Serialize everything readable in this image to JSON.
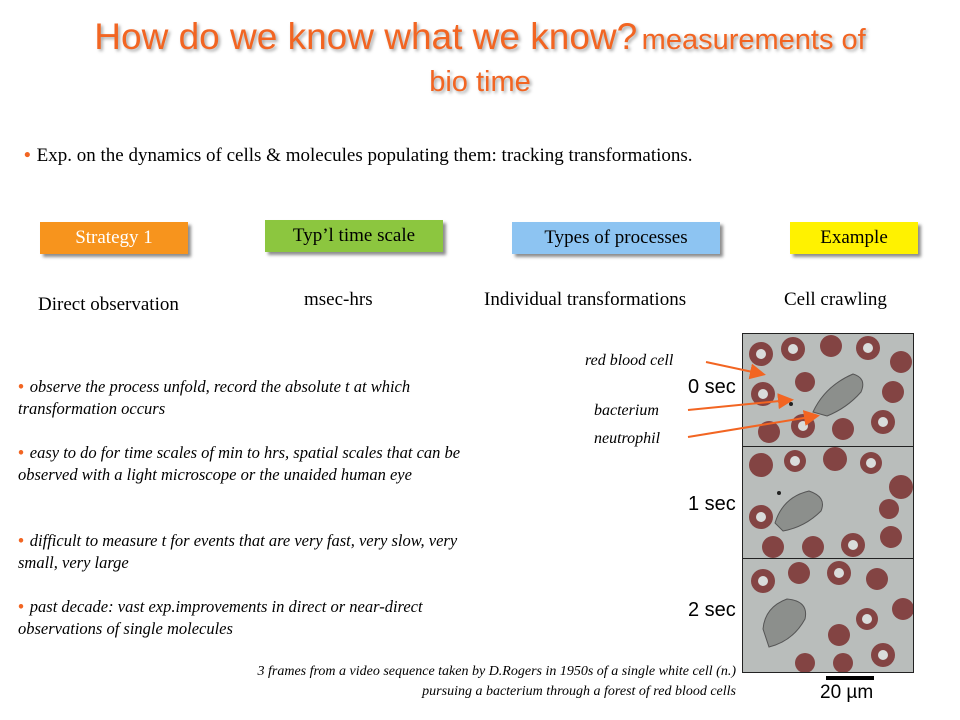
{
  "title": {
    "main": "How do we know what we know?",
    "secondary": "measurements of",
    "line2": "bio time"
  },
  "intro": "Exp. on the dynamics of cells & molecules populating them: tracking transformations.",
  "headers": [
    "Strategy 1",
    "Typ’l time scale",
    "Types of processes",
    "Example"
  ],
  "row1": [
    "Direct observation",
    "msec-hrs",
    "Individual transformations",
    "Cell crawling"
  ],
  "bullets": [
    "observe the process unfold, record the absolute t at which transformation occurs",
    "easy to do for time scales of min to hrs, spatial scales that can be observed with a light microscope or the unaided human eye",
    "difficult to measure t for events that are very fast, very slow, very small, very large",
    "past decade: vast exp.improvements  in direct or near-direct observations of single molecules"
  ],
  "figure": {
    "labels": {
      "rbc": "red blood cell",
      "bacterium": "bacterium",
      "neutrophil": "neutrophil"
    },
    "times": [
      "0 sec",
      "1 sec",
      "2 sec"
    ],
    "scale": "20 µm",
    "caption_line1": "3 frames from a video sequence taken by D.Rogers in 1950s of a single white cell (n.)",
    "caption_line2": "pursuing a bacterium through a forest of red blood cells"
  },
  "colors": {
    "title": "#f26522",
    "strategy": "#f7941d",
    "timescale": "#8cc63f",
    "processes": "#8dc4f2",
    "example": "#fff200"
  }
}
